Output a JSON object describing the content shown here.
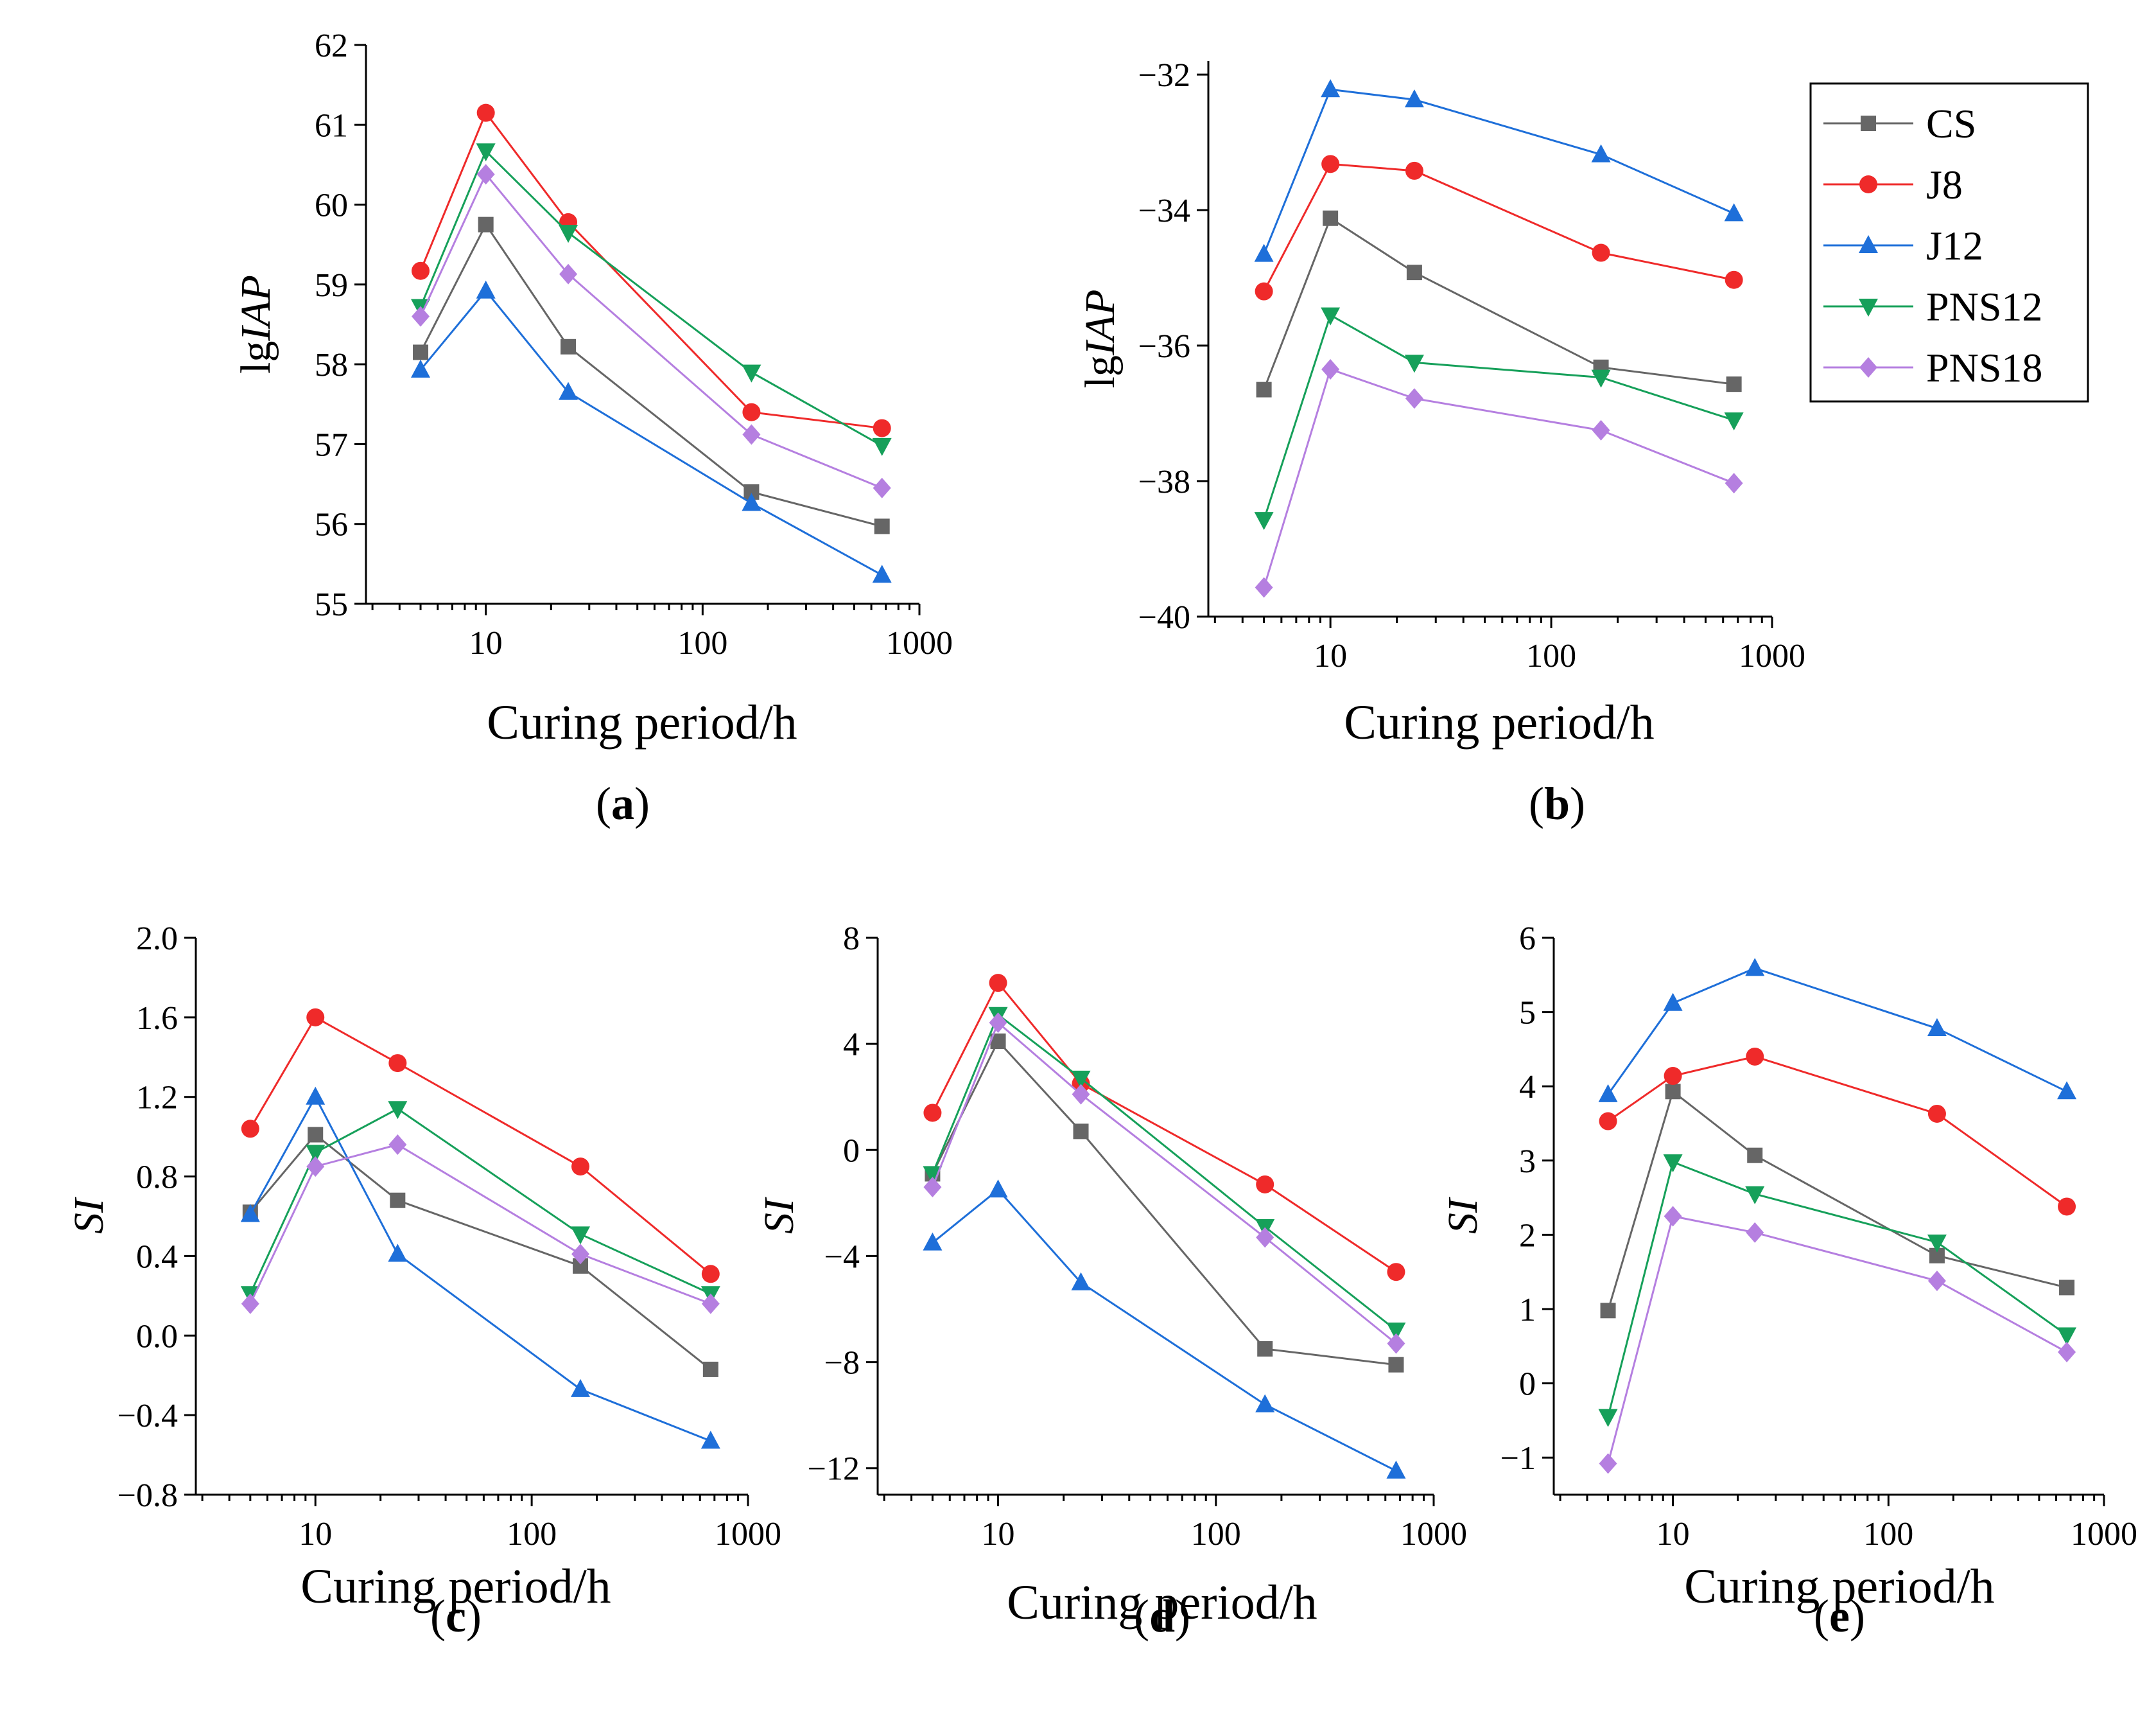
{
  "figure": {
    "colors": {
      "CS": "#666666",
      "J8": "#ef2a2a",
      "J12": "#1e6fd9",
      "PNS12": "#16a05a",
      "PNS18": "#b57fe0"
    },
    "legend": [
      "CS",
      "J8",
      "J12",
      "PNS12",
      "PNS18"
    ]
  },
  "chart_data": [
    {
      "id": "a",
      "type": "line",
      "panel_label": "a",
      "xlabel": "Curing period/h",
      "ylabel_prefix": "lg",
      "ylabel_italic": "IAP",
      "xscale": "log",
      "xlim": [
        2.8,
        1000
      ],
      "ylim": [
        55,
        62
      ],
      "xticks": [
        10,
        100,
        1000
      ],
      "xtick_labels": [
        "10",
        "100",
        "1000"
      ],
      "yticks": [
        55,
        56,
        57,
        58,
        59,
        60,
        61,
        62
      ],
      "ytick_labels": [
        "55",
        "56",
        "57",
        "58",
        "59",
        "60",
        "61",
        "62"
      ],
      "x": [
        5,
        10,
        24,
        168,
        672
      ],
      "series": [
        {
          "name": "CS",
          "values": [
            58.15,
            59.75,
            58.22,
            56.4,
            55.97
          ]
        },
        {
          "name": "J8",
          "values": [
            59.17,
            61.15,
            59.78,
            57.4,
            57.2
          ]
        },
        {
          "name": "J12",
          "values": [
            57.93,
            58.92,
            57.65,
            56.26,
            55.36
          ]
        },
        {
          "name": "PNS12",
          "values": [
            58.72,
            60.67,
            59.65,
            57.9,
            56.98
          ]
        },
        {
          "name": "PNS18",
          "values": [
            58.6,
            60.38,
            59.13,
            57.12,
            56.45
          ]
        }
      ]
    },
    {
      "id": "b",
      "type": "line",
      "panel_label": "b",
      "xlabel": "Curing period/h",
      "ylabel_prefix": "lg",
      "ylabel_italic": "IAP",
      "xscale": "log",
      "xlim": [
        2.8,
        1000
      ],
      "ylim": [
        -40,
        -31.8
      ],
      "xticks": [
        10,
        100,
        1000
      ],
      "xtick_labels": [
        "10",
        "100",
        "1000"
      ],
      "yticks": [
        -40,
        -38,
        -36,
        -34,
        -32
      ],
      "ytick_labels": [
        "−40",
        "−38",
        "−36",
        "−34",
        "−32"
      ],
      "x": [
        5,
        10,
        24,
        168,
        672
      ],
      "series": [
        {
          "name": "CS",
          "values": [
            -36.65,
            -34.12,
            -34.92,
            -36.32,
            -36.57
          ]
        },
        {
          "name": "J8",
          "values": [
            -35.2,
            -33.32,
            -33.42,
            -34.63,
            -35.03
          ]
        },
        {
          "name": "J12",
          "values": [
            -34.65,
            -32.22,
            -32.37,
            -33.18,
            -34.05
          ]
        },
        {
          "name": "PNS12",
          "values": [
            -38.57,
            -35.55,
            -36.25,
            -36.47,
            -37.1
          ]
        },
        {
          "name": "PNS18",
          "values": [
            -39.57,
            -36.35,
            -36.78,
            -37.25,
            -38.03
          ]
        }
      ]
    },
    {
      "id": "c",
      "type": "line",
      "panel_label": "c",
      "xlabel": "Curing period/h",
      "ylabel_prefix": "",
      "ylabel_italic": "SI",
      "xscale": "log",
      "xlim": [
        2.8,
        1000
      ],
      "ylim": [
        -0.8,
        2.0
      ],
      "xticks": [
        10,
        100,
        1000
      ],
      "xtick_labels": [
        "10",
        "100",
        "1000"
      ],
      "yticks": [
        -0.8,
        -0.4,
        0.0,
        0.4,
        0.8,
        1.2,
        1.6,
        2.0
      ],
      "ytick_labels": [
        "−0.8",
        "−0.4",
        "0.0",
        "0.4",
        "0.8",
        "1.2",
        "1.6",
        "2.0"
      ],
      "x": [
        5,
        10,
        24,
        168,
        672
      ],
      "series": [
        {
          "name": "CS",
          "values": [
            0.62,
            1.01,
            0.68,
            0.35,
            -0.17
          ]
        },
        {
          "name": "J8",
          "values": [
            1.04,
            1.6,
            1.37,
            0.85,
            0.31
          ]
        },
        {
          "name": "J12",
          "values": [
            0.61,
            1.2,
            0.41,
            -0.27,
            -0.53
          ]
        },
        {
          "name": "PNS12",
          "values": [
            0.21,
            0.92,
            1.14,
            0.51,
            0.21
          ]
        },
        {
          "name": "PNS18",
          "values": [
            0.16,
            0.85,
            0.96,
            0.41,
            0.16
          ]
        }
      ]
    },
    {
      "id": "d",
      "type": "line",
      "panel_label": "d",
      "xlabel": "Curing period/h",
      "ylabel_prefix": "",
      "ylabel_italic": "SI",
      "xscale": "log",
      "xlim": [
        2.8,
        1000
      ],
      "ylim": [
        -13,
        8
      ],
      "xticks": [
        10,
        100,
        1000
      ],
      "xtick_labels": [
        "10",
        "100",
        "1000"
      ],
      "yticks": [
        -12,
        -8,
        -4,
        0,
        4,
        8
      ],
      "ytick_labels": [
        "−12",
        "−8",
        "−4",
        "0",
        "4",
        "8"
      ],
      "x": [
        5,
        10,
        24,
        168,
        672
      ],
      "series": [
        {
          "name": "CS",
          "values": [
            -0.9,
            4.1,
            0.7,
            -7.5,
            -8.1
          ]
        },
        {
          "name": "J8",
          "values": [
            1.4,
            6.3,
            2.5,
            -1.3,
            -4.6
          ]
        },
        {
          "name": "J12",
          "values": [
            -3.5,
            -1.5,
            -5.0,
            -9.6,
            -12.1
          ]
        },
        {
          "name": "PNS12",
          "values": [
            -0.9,
            5.1,
            2.7,
            -2.9,
            -6.8
          ]
        },
        {
          "name": "PNS18",
          "values": [
            -1.4,
            4.8,
            2.1,
            -3.3,
            -7.3
          ]
        }
      ]
    },
    {
      "id": "e",
      "type": "line",
      "panel_label": "e",
      "xlabel": "Curing period/h",
      "ylabel_prefix": "",
      "ylabel_italic": "SI",
      "xscale": "log",
      "xlim": [
        2.8,
        1000
      ],
      "ylim": [
        -1.5,
        6
      ],
      "xticks": [
        10,
        100,
        1000
      ],
      "xtick_labels": [
        "10",
        "100",
        "1000"
      ],
      "yticks": [
        -1,
        0,
        1,
        2,
        3,
        4,
        5,
        6
      ],
      "ytick_labels": [
        "−1",
        "0",
        "1",
        "2",
        "3",
        "4",
        "5",
        "6"
      ],
      "x": [
        5,
        10,
        24,
        168,
        672
      ],
      "series": [
        {
          "name": "CS",
          "values": [
            0.98,
            3.93,
            3.07,
            1.72,
            1.29
          ]
        },
        {
          "name": "J8",
          "values": [
            3.53,
            4.14,
            4.4,
            3.63,
            2.38
          ]
        },
        {
          "name": "J12",
          "values": [
            3.89,
            5.12,
            5.59,
            4.78,
            3.93
          ]
        },
        {
          "name": "PNS12",
          "values": [
            -0.45,
            2.98,
            2.55,
            1.9,
            0.65
          ]
        },
        {
          "name": "PNS18",
          "values": [
            -1.08,
            2.25,
            2.03,
            1.38,
            0.42
          ]
        }
      ]
    }
  ]
}
